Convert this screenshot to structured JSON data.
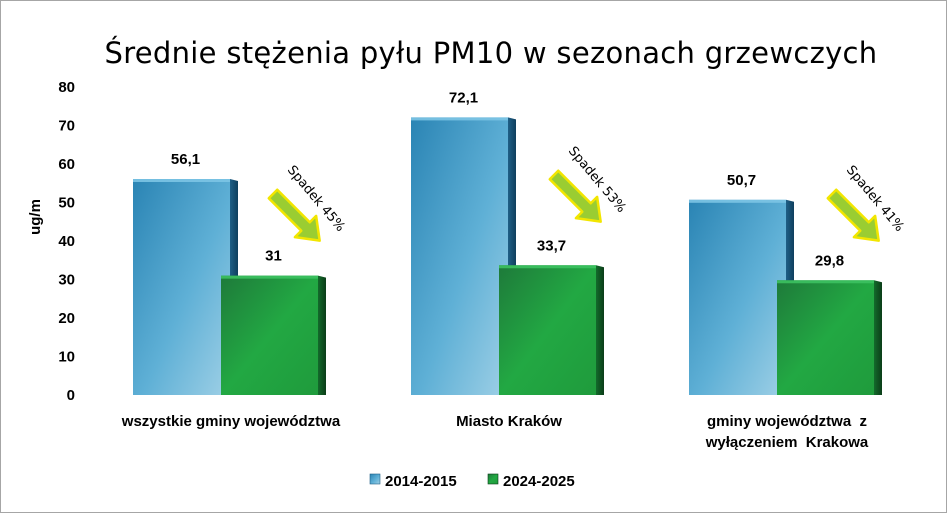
{
  "chart_data": {
    "type": "bar",
    "title": "Średnie stężenia pyłu PM10 w sezonach grzewczych",
    "ylabel": "ug/m",
    "xlabel": "",
    "ylim": [
      0,
      80
    ],
    "yticks": [
      0,
      10,
      20,
      30,
      40,
      50,
      60,
      70,
      80
    ],
    "grid": false,
    "legend_position": "bottom",
    "categories": [
      [
        "wszystkie gminy województwa"
      ],
      [
        "Miasto Kraków"
      ],
      [
        "gminy województwa  z",
        "wyłączeniem  Krakowa"
      ]
    ],
    "series": [
      {
        "name": "2014-2015",
        "values": [
          56.1,
          72.1,
          50.7
        ],
        "labels": [
          "56,1",
          "72,1",
          "50,7"
        ],
        "color": "#4aa3cc"
      },
      {
        "name": "2024-2025",
        "values": [
          31,
          33.7,
          29.8
        ],
        "labels": [
          "31",
          "33,7",
          "29,8"
        ],
        "color": "#1fa33a"
      }
    ],
    "annotations": [
      "Spadek 45%",
      "Spadek 53%",
      "Spadek 41%"
    ],
    "arrow_color": "#9acd32",
    "arrow_outline": "#f2e600"
  }
}
